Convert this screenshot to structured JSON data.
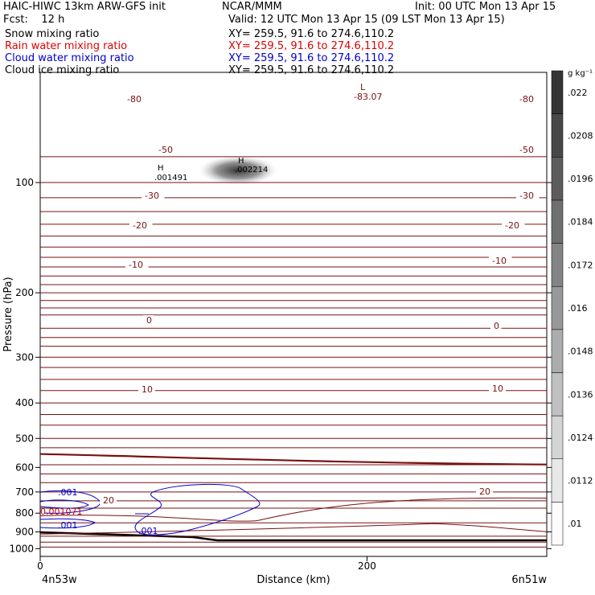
{
  "header": {
    "title_left": "HAIC-HIWC 13km ARW-GFS init",
    "org": "NCAR/MMM",
    "init": "Init: 00 UTC Mon 13 Apr 15",
    "fcst": "Fcst:    12 h",
    "valid": "Valid: 12 UTC Mon 13 Apr 15 (09 LST Mon 13 Apr 15)",
    "fields": [
      {
        "name": "Snow mixing ratio",
        "xy": "XY= 259.5, 91.6 to 274.6,110.2",
        "color": "#000000"
      },
      {
        "name": "Rain water mixing ratio",
        "xy": "XY= 259.5, 91.6 to 274.6,110.2",
        "color": "#e00000"
      },
      {
        "name": "Cloud water mixing ratio",
        "xy": "XY= 259.5, 91.6 to 274.6,110.2",
        "color": "#0000cc"
      },
      {
        "name": "Cloud ice mixing ratio",
        "xy": "XY= 259.5, 91.6 to 274.6,110.2",
        "color": "#000000"
      }
    ]
  },
  "chart_data": {
    "type": "contour",
    "xlabel": "Distance (km)",
    "ylabel": "Pressure (hPa)",
    "x_ticks": [
      0,
      200
    ],
    "x_range": [
      0,
      310
    ],
    "x_end_labels": {
      "left": "4n53w",
      "right": "6n51w"
    },
    "y_ticks": [
      100,
      200,
      300,
      400,
      500,
      600,
      700,
      800,
      900,
      1000
    ],
    "y_range": [
      50,
      1050
    ],
    "y_scale": "log",
    "temperature_labels": [
      "-80",
      "-80",
      "-50",
      "-50",
      "-30",
      "-30",
      "-20",
      "-20",
      "-10",
      "-10",
      "0",
      "0",
      "10",
      "10",
      "20",
      "20"
    ],
    "low_marker": {
      "symbol": "L",
      "value": "-83.07"
    },
    "high_markers": [
      {
        "symbol": "H",
        "value": ".001491"
      },
      {
        "symbol": "H",
        "value": ".002214"
      }
    ],
    "cloud_water_labels": [
      ".001",
      ".001",
      ".001"
    ],
    "rain_label": "0.001071",
    "colorbar": {
      "units": "g kg⁻¹",
      "levels": [
        ".01",
        ".0112",
        ".0124",
        ".0136",
        ".0148",
        ".016",
        ".0172",
        ".0184",
        ".0196",
        ".0208",
        ".022"
      ]
    },
    "colors": {
      "isotherm": "#7a1010",
      "cloud_water": "#0000cc",
      "terrain": "#000000",
      "rain": "#cc0000"
    }
  }
}
